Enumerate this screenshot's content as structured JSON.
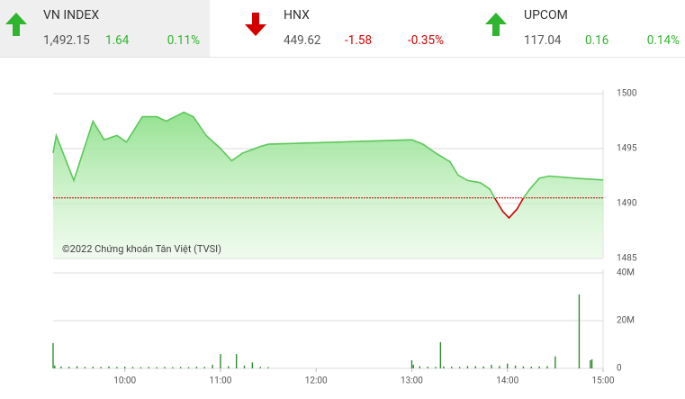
{
  "tickers": [
    {
      "name": "VN INDEX",
      "value": "1,492.15",
      "change": "1.64",
      "percent": "0.11%"
    },
    {
      "name": "HNX",
      "value": "449.62",
      "change": "-1.58",
      "percent": "-0.35%"
    },
    {
      "name": "UPCOM",
      "value": "117.04",
      "change": "0.16",
      "percent": "0.14%"
    }
  ],
  "chart_data": [
    {
      "type": "line",
      "annotation": "©2022 Chứng khoán Tân Việt (TVSI)",
      "x": [
        "09:15",
        "09:17",
        "09:28",
        "09:40",
        "09:47",
        "09:55",
        "10:01",
        "10:11",
        "10:20",
        "10:26",
        "10:37",
        "10:43",
        "10:51",
        "11:00",
        "11:07",
        "11:14",
        "11:25",
        "11:30",
        "13:00",
        "13:07",
        "13:15",
        "13:24",
        "13:29",
        "13:35",
        "13:43",
        "13:49",
        "13:52",
        "13:57",
        "14:01",
        "14:06",
        "14:10",
        "14:14",
        "14:20",
        "14:26",
        "14:43",
        "15:00"
      ],
      "values": [
        1494.6,
        1496.2,
        1492.1,
        1497.5,
        1495.8,
        1496.2,
        1495.6,
        1497.9,
        1497.9,
        1497.5,
        1498.3,
        1497.9,
        1496.2,
        1495.0,
        1493.9,
        1494.6,
        1495.2,
        1495.4,
        1495.8,
        1495.4,
        1494.6,
        1493.8,
        1492.6,
        1492.1,
        1491.9,
        1491.3,
        1490.5,
        1489.3,
        1488.7,
        1489.5,
        1490.5,
        1491.3,
        1492.3,
        1492.5,
        1492.3,
        1492.15
      ],
      "reference": 1490.51,
      "color": "#5cc85a",
      "below_color": "#cc0000",
      "reference_color": "#c00000",
      "xlim": [
        "09:15",
        "15:00"
      ],
      "ylim": [
        1485,
        1500
      ],
      "yticks": [
        1485,
        1490,
        1495,
        1500
      ],
      "grid": true
    },
    {
      "type": "bar",
      "x": [
        "09:15",
        "09:16",
        "09:20",
        "09:25",
        "09:30",
        "09:35",
        "09:40",
        "09:45",
        "09:50",
        "09:55",
        "10:00",
        "10:05",
        "10:10",
        "10:15",
        "10:20",
        "10:25",
        "10:30",
        "10:35",
        "10:40",
        "10:45",
        "10:50",
        "10:55",
        "11:00",
        "11:05",
        "11:10",
        "11:15",
        "11:20",
        "11:25",
        "11:30",
        "13:00",
        "13:01",
        "13:05",
        "13:10",
        "13:15",
        "13:18",
        "13:20",
        "13:25",
        "13:30",
        "13:35",
        "13:40",
        "13:45",
        "13:50",
        "13:55",
        "14:00",
        "14:05",
        "14:10",
        "14:15",
        "14:20",
        "14:25",
        "14:30",
        "14:45",
        "14:52",
        "14:53"
      ],
      "values": [
        10600000,
        1200000,
        800000,
        700000,
        900000,
        600000,
        700000,
        600000,
        800000,
        600000,
        700000,
        600000,
        500000,
        600000,
        500000,
        600000,
        500000,
        600000,
        500000,
        700000,
        600000,
        1500000,
        6000000,
        900000,
        6000000,
        1200000,
        2500000,
        600000,
        500000,
        3400000,
        1500000,
        900000,
        700000,
        600000,
        11000000,
        800000,
        700000,
        600000,
        1000000,
        900000,
        800000,
        1500000,
        1000000,
        2000000,
        1200000,
        800000,
        700000,
        800000,
        900000,
        5000000,
        31000000,
        3400000,
        3800000
      ],
      "color": "#2e8b2e",
      "xlim": [
        "09:15",
        "15:00"
      ],
      "xticks": [
        "10:00",
        "11:00",
        "12:00",
        "13:00",
        "14:00",
        "15:00"
      ],
      "ylim": [
        0,
        40000000
      ],
      "yticks": [
        0,
        {
          "value": 20000000,
          "label": "20M"
        },
        {
          "value": 40000000,
          "label": "40M"
        }
      ],
      "grid": true
    }
  ]
}
